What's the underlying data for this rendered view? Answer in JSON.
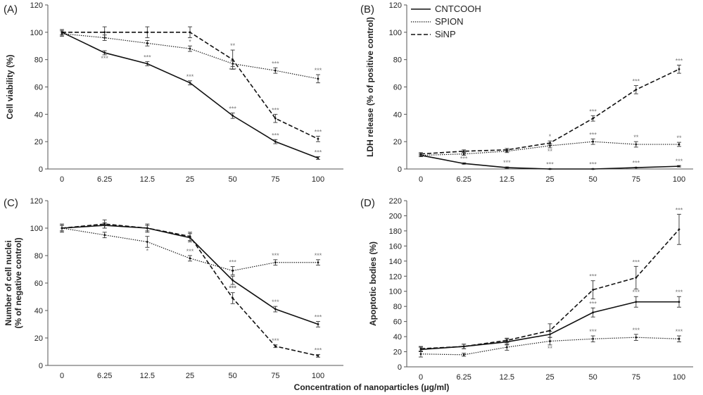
{
  "figure": {
    "xlabel": "Concentration of nanoparticles (μg/ml)"
  },
  "legend": [
    {
      "name": "CNTCOOH",
      "style": "solid"
    },
    {
      "name": "SPION",
      "style": "dotted"
    },
    {
      "name": "SiNP",
      "style": "dashed"
    }
  ],
  "chart_data": [
    {
      "id": "A",
      "type": "line",
      "label": "(A)",
      "ylabel": [
        "Cell viability (%)"
      ],
      "categories": [
        "0",
        "6.25",
        "12.5",
        "25",
        "50",
        "75",
        "100"
      ],
      "ylim": [
        0,
        120
      ],
      "yticks": [
        0,
        20,
        40,
        60,
        80,
        100,
        120
      ],
      "series": [
        {
          "name": "CNTCOOH",
          "style": "solid",
          "values": [
            100,
            85,
            77,
            63,
            39,
            20,
            8
          ],
          "errors": [
            2,
            1.5,
            1.5,
            1.5,
            2,
            1.5,
            1
          ],
          "sig": [
            "",
            "***",
            "***",
            "***",
            "***",
            "***",
            "***"
          ],
          "sigPos": [
            "",
            "below",
            "above",
            "above",
            "above",
            "above",
            "above"
          ]
        },
        {
          "name": "SPION",
          "style": "dotted",
          "values": [
            99,
            96,
            92,
            88,
            77,
            72,
            66
          ],
          "errors": [
            2,
            2,
            2,
            2,
            2,
            2,
            3
          ],
          "sig": [
            "",
            "",
            "",
            "*",
            "***",
            "***",
            "***"
          ],
          "sigPos": [
            "",
            "",
            "",
            "above",
            "below",
            "above",
            "above"
          ]
        },
        {
          "name": "SiNP",
          "style": "dashed",
          "values": [
            100,
            100,
            100,
            100,
            80,
            37,
            22
          ],
          "errors": [
            2,
            4,
            4,
            4,
            7,
            3,
            2
          ],
          "sig": [
            "",
            "",
            "",
            "",
            "**",
            "***",
            "***"
          ],
          "sigPos": [
            "",
            "",
            "",
            "",
            "above",
            "above",
            "above"
          ]
        }
      ]
    },
    {
      "id": "B",
      "type": "line",
      "label": "(B)",
      "ylabel": [
        "LDH release (% of positive control)"
      ],
      "categories": [
        "0",
        "6.25",
        "12.5",
        "25",
        "50",
        "75",
        "100"
      ],
      "ylim": [
        0,
        120
      ],
      "yticks": [
        0,
        20,
        40,
        60,
        80,
        100,
        120
      ],
      "series": [
        {
          "name": "CNTCOOH",
          "style": "solid",
          "values": [
            10,
            4,
            1,
            0,
            0,
            1,
            2
          ],
          "errors": [
            1,
            0.5,
            0.5,
            0.3,
            0.3,
            0.3,
            0.5
          ],
          "sig": [
            "",
            "***",
            "***",
            "***",
            "***",
            "***",
            "***"
          ],
          "sigPos": [
            "",
            "above",
            "above",
            "above",
            "above",
            "above",
            "above"
          ]
        },
        {
          "name": "SPION",
          "style": "dotted",
          "values": [
            10,
            11,
            13,
            17,
            20,
            18,
            18
          ],
          "errors": [
            1,
            1,
            1,
            1.5,
            2,
            2,
            1.5
          ],
          "sig": [
            "",
            "",
            "",
            "**",
            "***",
            "**",
            "**"
          ],
          "sigPos": [
            "",
            "",
            "",
            "below",
            "above",
            "above",
            "above"
          ]
        },
        {
          "name": "SiNP",
          "style": "dashed",
          "values": [
            11,
            13,
            14,
            19,
            37,
            58,
            73
          ],
          "errors": [
            1,
            1,
            1,
            1.5,
            2,
            3,
            3
          ],
          "sig": [
            "",
            "",
            "",
            "*",
            "***",
            "***",
            "***"
          ],
          "sigPos": [
            "",
            "",
            "",
            "above",
            "above",
            "above",
            "above"
          ]
        }
      ]
    },
    {
      "id": "C",
      "type": "line",
      "label": "(C)",
      "ylabel": [
        "Number of cell nuclei",
        "(% of negative control)"
      ],
      "categories": [
        "0",
        "6.25",
        "12.5",
        "25",
        "50",
        "75",
        "100"
      ],
      "ylim": [
        0,
        120
      ],
      "yticks": [
        0,
        20,
        40,
        60,
        80,
        100,
        120
      ],
      "series": [
        {
          "name": "CNTCOOH",
          "style": "solid",
          "values": [
            100,
            102,
            100,
            93,
            62,
            41,
            30
          ],
          "errors": [
            2,
            2,
            2,
            3,
            3,
            2,
            2
          ],
          "sig": [
            "",
            "",
            "",
            "",
            "***",
            "***",
            "***"
          ],
          "sigPos": [
            "",
            "",
            "",
            "",
            "below",
            "above",
            "above"
          ]
        },
        {
          "name": "SPION",
          "style": "dotted",
          "values": [
            100,
            95,
            90,
            78,
            69,
            75,
            75
          ],
          "errors": [
            2,
            2,
            4,
            2,
            3,
            2,
            2
          ],
          "sig": [
            "",
            "",
            "*",
            "***",
            "***",
            "***",
            "***"
          ],
          "sigPos": [
            "",
            "",
            "below",
            "above",
            "above",
            "above",
            "above"
          ]
        },
        {
          "name": "SiNP",
          "style": "dashed",
          "values": [
            100,
            103,
            100,
            94,
            49,
            14,
            7
          ],
          "errors": [
            3,
            3,
            3,
            3,
            4,
            1,
            1
          ],
          "sig": [
            "",
            "",
            "",
            "",
            "***",
            "***",
            "***"
          ],
          "sigPos": [
            "",
            "",
            "",
            "",
            "above",
            "above",
            "above"
          ]
        }
      ]
    },
    {
      "id": "D",
      "type": "line",
      "label": "(D)",
      "ylabel": [
        "Apoptotic bodies (%)"
      ],
      "categories": [
        "0",
        "6.25",
        "12.5",
        "25",
        "50",
        "75",
        "100"
      ],
      "ylim": [
        0,
        220
      ],
      "yticks": [
        0,
        20,
        40,
        60,
        80,
        100,
        120,
        140,
        160,
        180,
        200,
        220
      ],
      "series": [
        {
          "name": "CNTCOOH",
          "style": "solid",
          "values": [
            23,
            27,
            33,
            43,
            72,
            86,
            86
          ],
          "errors": [
            3,
            3,
            4,
            4,
            6,
            7,
            7
          ],
          "sig": [
            "",
            "",
            "",
            "",
            "***",
            "***",
            "***"
          ],
          "sigPos": [
            "",
            "",
            "",
            "",
            "above",
            "above",
            "above"
          ]
        },
        {
          "name": "SPION",
          "style": "dotted",
          "values": [
            17,
            16,
            26,
            34,
            37,
            39,
            37
          ],
          "errors": [
            4,
            2,
            4,
            5,
            4,
            4,
            4
          ],
          "sig": [
            "",
            "",
            "",
            "**",
            "***",
            "***",
            "***"
          ],
          "sigPos": [
            "",
            "",
            "",
            "below",
            "above",
            "above",
            "above"
          ]
        },
        {
          "name": "SiNP",
          "style": "dashed",
          "values": [
            24,
            27,
            35,
            48,
            102,
            118,
            182
          ],
          "errors": [
            3,
            3,
            3,
            9,
            12,
            15,
            20
          ],
          "sig": [
            "",
            "",
            "",
            "",
            "***",
            "***",
            "***"
          ],
          "sigPos": [
            "",
            "",
            "",
            "",
            "above",
            "above",
            "above"
          ]
        }
      ]
    }
  ]
}
